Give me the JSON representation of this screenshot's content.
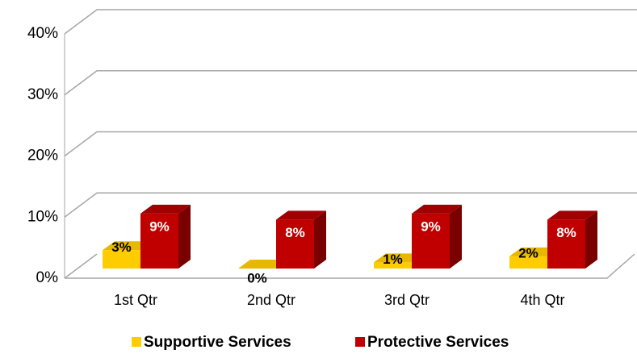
{
  "chart_data": {
    "type": "bar3d",
    "categories": [
      "1st Qtr",
      "2nd Qtr",
      "3rd Qtr",
      "4th Qtr"
    ],
    "series": [
      {
        "name": "Supportive Services",
        "color": "#FFCC00",
        "values": [
          3,
          0,
          1,
          2
        ],
        "value_labels": [
          "3%",
          "0%",
          "1%",
          "2%"
        ]
      },
      {
        "name": "Protective Services",
        "color": "#C00000",
        "values": [
          9,
          8,
          9,
          8
        ],
        "value_labels": [
          "9%",
          "8%",
          "9%",
          "8%"
        ]
      }
    ],
    "ylim": [
      0,
      40
    ],
    "yticks": [
      {
        "value": 0,
        "label": "0%"
      },
      {
        "value": 10,
        "label": "10%"
      },
      {
        "value": 20,
        "label": "20%"
      },
      {
        "value": 30,
        "label": "30%"
      },
      {
        "value": 40,
        "label": "40%"
      }
    ],
    "grid": true,
    "legend": "bottom"
  }
}
